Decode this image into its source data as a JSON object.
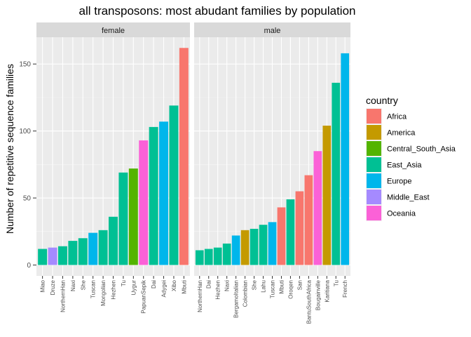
{
  "chart_data": {
    "type": "bar",
    "title": "all transposons: most abudant families by population",
    "ylabel": "Number of repetitive sequence families",
    "xlabel": "",
    "ylim": [
      0,
      170
    ],
    "yticks": [
      0,
      50,
      100,
      150
    ],
    "grid": true,
    "legend": {
      "title": "country",
      "placement": "right",
      "entries": [
        {
          "name": "Africa",
          "color": "#F8766D"
        },
        {
          "name": "America",
          "color": "#C49A00"
        },
        {
          "name": "Central_South_Asia",
          "color": "#53B400"
        },
        {
          "name": "East_Asia",
          "color": "#00C094"
        },
        {
          "name": "Europe",
          "color": "#00B6EB"
        },
        {
          "name": "Middle_East",
          "color": "#A58AFF"
        },
        {
          "name": "Oceania",
          "color": "#FB61D7"
        }
      ]
    },
    "facets": [
      {
        "label": "female",
        "bars": [
          {
            "category": "Miao",
            "value": 12,
            "country": "East_Asia"
          },
          {
            "category": "Druze",
            "value": 13,
            "country": "Middle_East"
          },
          {
            "category": "NorthernHan",
            "value": 14,
            "country": "East_Asia"
          },
          {
            "category": "Naxi",
            "value": 18,
            "country": "East_Asia"
          },
          {
            "category": "She",
            "value": 20,
            "country": "East_Asia"
          },
          {
            "category": "Tuscan",
            "value": 24,
            "country": "Europe"
          },
          {
            "category": "Mongolian",
            "value": 26,
            "country": "East_Asia"
          },
          {
            "category": "Hezhen",
            "value": 36,
            "country": "East_Asia"
          },
          {
            "category": "Tu",
            "value": 69,
            "country": "East_Asia"
          },
          {
            "category": "Uygur",
            "value": 72,
            "country": "Central_South_Asia"
          },
          {
            "category": "PapuanSepik",
            "value": 93,
            "country": "Oceania"
          },
          {
            "category": "Dai",
            "value": 103,
            "country": "East_Asia"
          },
          {
            "category": "Adygei",
            "value": 107,
            "country": "Europe"
          },
          {
            "category": "Xibo",
            "value": 119,
            "country": "East_Asia"
          },
          {
            "category": "Mbuti",
            "value": 162,
            "country": "Africa"
          }
        ]
      },
      {
        "label": "male",
        "bars": [
          {
            "category": "NorthernHan",
            "value": 11,
            "country": "East_Asia"
          },
          {
            "category": "Dai",
            "value": 12,
            "country": "East_Asia"
          },
          {
            "category": "Hezhen",
            "value": 13,
            "country": "East_Asia"
          },
          {
            "category": "Naxi",
            "value": 16,
            "country": "East_Asia"
          },
          {
            "category": "BergamoItalian",
            "value": 22,
            "country": "Europe"
          },
          {
            "category": "Colombian",
            "value": 26,
            "country": "America"
          },
          {
            "category": "She",
            "value": 27,
            "country": "East_Asia"
          },
          {
            "category": "Lahu",
            "value": 30,
            "country": "East_Asia"
          },
          {
            "category": "Tuscan",
            "value": 32,
            "country": "Europe"
          },
          {
            "category": "Mbuti",
            "value": 43,
            "country": "Africa"
          },
          {
            "category": "Oroqen",
            "value": 49,
            "country": "East_Asia"
          },
          {
            "category": "San",
            "value": 55,
            "country": "Africa"
          },
          {
            "category": "BantuSouthAfrica",
            "value": 67,
            "country": "Africa"
          },
          {
            "category": "Bougainville",
            "value": 85,
            "country": "Oceania"
          },
          {
            "category": "Karitiana",
            "value": 104,
            "country": "America"
          },
          {
            "category": "Tu",
            "value": 136,
            "country": "East_Asia"
          },
          {
            "category": "French",
            "value": 158,
            "country": "Europe"
          }
        ]
      }
    ]
  }
}
